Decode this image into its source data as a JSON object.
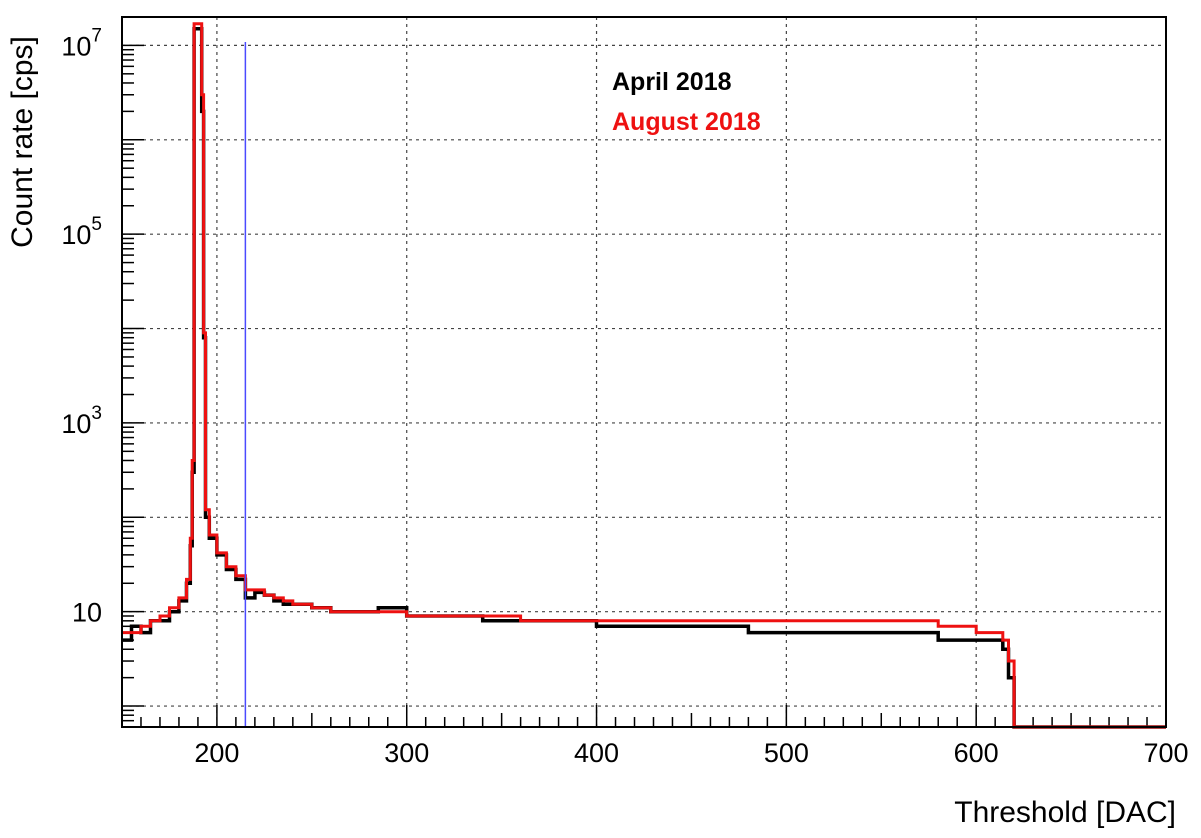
{
  "chart_data": {
    "type": "line",
    "xlabel": "Threshold [DAC]",
    "ylabel": "Count rate [cps]",
    "xlim": [
      150,
      700
    ],
    "ylim": [
      0.6,
      20000000
    ],
    "y_scale": "log",
    "grid": true,
    "legend_position": "top-center",
    "x_ticks": [
      {
        "value": 200,
        "label": "200"
      },
      {
        "value": 300,
        "label": "300"
      },
      {
        "value": 400,
        "label": "400"
      },
      {
        "value": 500,
        "label": "500"
      },
      {
        "value": 600,
        "label": "600"
      },
      {
        "value": 700,
        "label": "700"
      }
    ],
    "y_ticks": [
      {
        "value": 10,
        "label": "10",
        "exp": ""
      },
      {
        "value": 1000,
        "label": "10",
        "exp": "3"
      },
      {
        "value": 100000,
        "label": "10",
        "exp": "5"
      },
      {
        "value": 10000000,
        "label": "10",
        "exp": "7"
      }
    ],
    "vline": {
      "x": 215,
      "color": "#4a4aff"
    },
    "series": [
      {
        "name": "April 2018",
        "color": "#000000",
        "points": [
          [
            150,
            5
          ],
          [
            155,
            7
          ],
          [
            160,
            6
          ],
          [
            165,
            8
          ],
          [
            170,
            8
          ],
          [
            175,
            10
          ],
          [
            180,
            13
          ],
          [
            184,
            20
          ],
          [
            186,
            50
          ],
          [
            187,
            300
          ],
          [
            188,
            15000000
          ],
          [
            189,
            15000000
          ],
          [
            190,
            15000000
          ],
          [
            191,
            15000000
          ],
          [
            192,
            2000000
          ],
          [
            193,
            8000
          ],
          [
            194,
            100
          ],
          [
            196,
            60
          ],
          [
            200,
            40
          ],
          [
            205,
            28
          ],
          [
            210,
            22
          ],
          [
            215,
            14
          ],
          [
            220,
            16
          ],
          [
            225,
            15
          ],
          [
            230,
            13
          ],
          [
            235,
            12
          ],
          [
            240,
            12
          ],
          [
            250,
            11
          ],
          [
            260,
            10
          ],
          [
            270,
            10
          ],
          [
            285,
            11
          ],
          [
            300,
            9
          ],
          [
            320,
            9
          ],
          [
            340,
            8
          ],
          [
            360,
            8
          ],
          [
            380,
            8
          ],
          [
            400,
            7
          ],
          [
            420,
            7
          ],
          [
            440,
            7
          ],
          [
            460,
            7
          ],
          [
            480,
            6
          ],
          [
            500,
            6
          ],
          [
            520,
            6
          ],
          [
            540,
            6
          ],
          [
            560,
            6
          ],
          [
            580,
            5
          ],
          [
            600,
            5
          ],
          [
            610,
            5
          ],
          [
            614,
            4
          ],
          [
            617,
            2
          ],
          [
            620,
            0.6
          ],
          [
            700,
            0.6
          ]
        ]
      },
      {
        "name": "August 2018",
        "color": "#ee1111",
        "points": [
          [
            150,
            6
          ],
          [
            155,
            6
          ],
          [
            160,
            7
          ],
          [
            165,
            8
          ],
          [
            170,
            9
          ],
          [
            175,
            11
          ],
          [
            180,
            14
          ],
          [
            184,
            22
          ],
          [
            186,
            60
          ],
          [
            187,
            400
          ],
          [
            188,
            17000000
          ],
          [
            189,
            17000000
          ],
          [
            190,
            17000000
          ],
          [
            191,
            17000000
          ],
          [
            192,
            3000000
          ],
          [
            193,
            9000
          ],
          [
            194,
            120
          ],
          [
            196,
            65
          ],
          [
            200,
            42
          ],
          [
            205,
            30
          ],
          [
            210,
            24
          ],
          [
            215,
            17
          ],
          [
            220,
            17
          ],
          [
            225,
            15
          ],
          [
            230,
            14
          ],
          [
            235,
            13
          ],
          [
            240,
            12
          ],
          [
            250,
            11
          ],
          [
            260,
            10
          ],
          [
            270,
            10
          ],
          [
            285,
            10
          ],
          [
            300,
            9
          ],
          [
            320,
            9
          ],
          [
            340,
            9
          ],
          [
            360,
            8
          ],
          [
            380,
            8
          ],
          [
            400,
            8
          ],
          [
            420,
            8
          ],
          [
            440,
            8
          ],
          [
            460,
            8
          ],
          [
            480,
            8
          ],
          [
            500,
            8
          ],
          [
            520,
            8
          ],
          [
            540,
            8
          ],
          [
            560,
            8
          ],
          [
            580,
            7
          ],
          [
            600,
            6
          ],
          [
            610,
            6
          ],
          [
            614,
            5
          ],
          [
            617,
            3
          ],
          [
            620,
            0.6
          ],
          [
            700,
            0.6
          ]
        ]
      }
    ]
  }
}
